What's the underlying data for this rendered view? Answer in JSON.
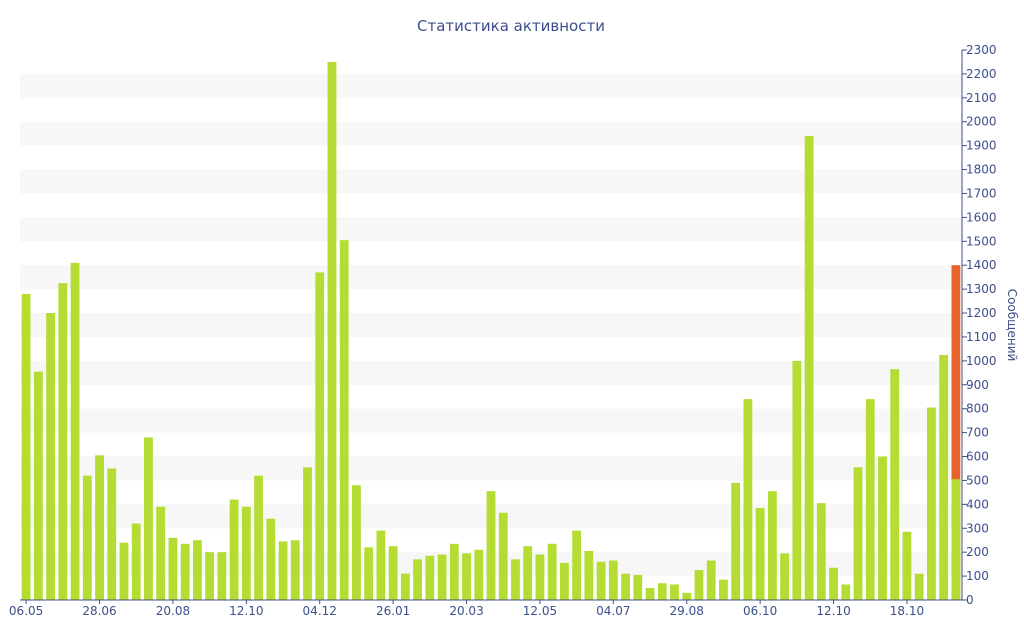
{
  "chart_data": {
    "type": "bar",
    "title": "Статистика активности",
    "ylabel": "Сообщений",
    "xlabel": "",
    "y_axis_side": "right",
    "ylim": [
      0,
      2300
    ],
    "y_ticks": [
      0,
      100,
      200,
      300,
      400,
      500,
      600,
      700,
      800,
      900,
      1000,
      1100,
      1200,
      1300,
      1400,
      1500,
      1600,
      1700,
      1800,
      1900,
      2000,
      2100,
      2200,
      2300
    ],
    "x_tick_labels": [
      {
        "index": 0,
        "label": "06.05"
      },
      {
        "index": 6,
        "label": "28.06"
      },
      {
        "index": 12,
        "label": "20.08"
      },
      {
        "index": 18,
        "label": "12.10"
      },
      {
        "index": 24,
        "label": "04.12"
      },
      {
        "index": 30,
        "label": "26.01"
      },
      {
        "index": 36,
        "label": "20.03"
      },
      {
        "index": 42,
        "label": "12.05"
      },
      {
        "index": 48,
        "label": "04.07"
      },
      {
        "index": 54,
        "label": "29.08"
      },
      {
        "index": 60,
        "label": "06.10"
      },
      {
        "index": 66,
        "label": "12.10"
      },
      {
        "index": 72,
        "label": "18.10"
      }
    ],
    "values": [
      1280,
      955,
      1200,
      1325,
      1410,
      520,
      605,
      550,
      240,
      320,
      680,
      390,
      260,
      235,
      250,
      200,
      200,
      420,
      390,
      520,
      340,
      245,
      250,
      555,
      1370,
      2250,
      1505,
      480,
      220,
      290,
      225,
      110,
      170,
      185,
      190,
      235,
      195,
      210,
      455,
      365,
      170,
      225,
      190,
      235,
      155,
      290,
      205,
      160,
      165,
      110,
      105,
      50,
      70,
      65,
      30,
      125,
      165,
      85,
      490,
      840,
      385,
      455,
      195,
      1000,
      1940,
      405,
      135,
      65,
      555,
      840,
      600,
      965,
      285,
      110,
      805,
      1025,
      505
    ],
    "last_bar_highlight": {
      "value": 1400
    },
    "grid": "alternating-bands",
    "colors": {
      "bar": "#b4dc32",
      "highlight": "#e8632c",
      "text": "#3d4f8a",
      "band": "#f7f7f7",
      "axis": "#3d4f8a"
    }
  }
}
